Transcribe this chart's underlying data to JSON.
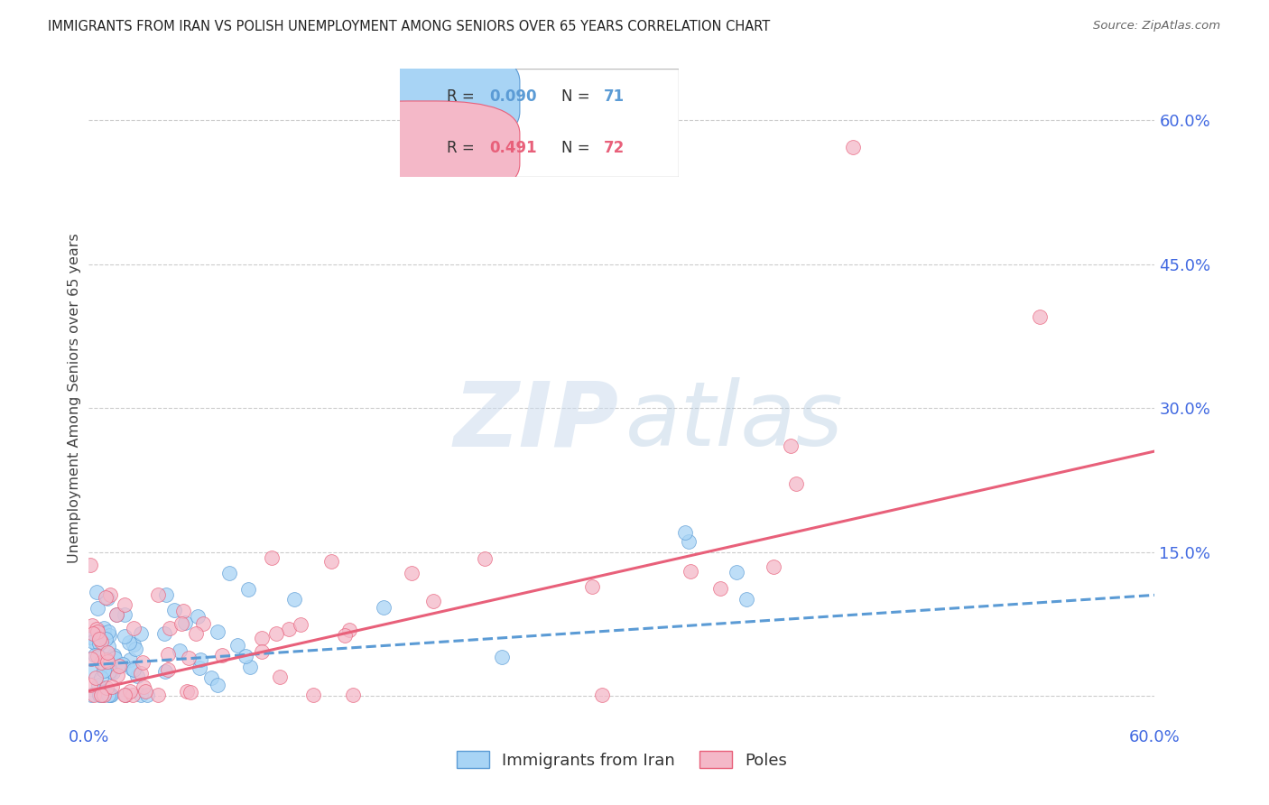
{
  "title": "IMMIGRANTS FROM IRAN VS POLISH UNEMPLOYMENT AMONG SENIORS OVER 65 YEARS CORRELATION CHART",
  "source": "Source: ZipAtlas.com",
  "ylabel": "Unemployment Among Seniors over 65 years",
  "legend_label1": "Immigrants from Iran",
  "legend_label2": "Poles",
  "R1": "0.090",
  "N1": "71",
  "R2": "0.491",
  "N2": "72",
  "xmin": 0.0,
  "xmax": 0.6,
  "ymin": -0.03,
  "ymax": 0.65,
  "ytick_vals": [
    0.0,
    0.15,
    0.3,
    0.45,
    0.6
  ],
  "ytick_labels": [
    "",
    "15.0%",
    "30.0%",
    "45.0%",
    "60.0%"
  ],
  "color_blue_fill": "#a8d4f5",
  "color_blue_edge": "#5b9bd5",
  "color_blue_line": "#5b9bd5",
  "color_pink_fill": "#f4b8c8",
  "color_pink_edge": "#e8607a",
  "color_pink_line": "#e8607a",
  "color_axis_text": "#4169E1",
  "color_grid": "#cccccc",
  "color_title": "#222222",
  "color_ylabel": "#444444",
  "blue_line_y0": 0.032,
  "blue_line_y1": 0.105,
  "pink_line_y0": 0.005,
  "pink_line_y1": 0.255
}
